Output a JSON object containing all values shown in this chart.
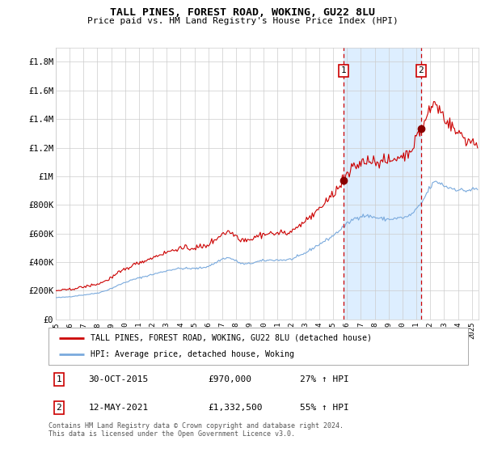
{
  "title": "TALL PINES, FOREST ROAD, WOKING, GU22 8LU",
  "subtitle": "Price paid vs. HM Land Registry's House Price Index (HPI)",
  "sale1_date": "30-OCT-2015",
  "sale1_price": 970000,
  "sale1_pct": "27%",
  "sale2_date": "12-MAY-2021",
  "sale2_price": 1332500,
  "sale2_pct": "55%",
  "legend1": "TALL PINES, FOREST ROAD, WOKING, GU22 8LU (detached house)",
  "legend2": "HPI: Average price, detached house, Woking",
  "footer": "Contains HM Land Registry data © Crown copyright and database right 2024.\nThis data is licensed under the Open Government Licence v3.0.",
  "hpi_color": "#7aaadd",
  "price_color": "#cc0000",
  "dot_color": "#880000",
  "shade_color": "#ddeeff",
  "dashed_color": "#cc0000",
  "grid_color": "#cccccc",
  "bg_color": "#ffffff",
  "ylim": [
    0,
    1900000
  ],
  "yticks": [
    0,
    200000,
    400000,
    600000,
    800000,
    1000000,
    1200000,
    1400000,
    1600000,
    1800000
  ],
  "ytick_labels": [
    "£0",
    "£200K",
    "£400K",
    "£600K",
    "£800K",
    "£1M",
    "£1.2M",
    "£1.4M",
    "£1.6M",
    "£1.8M"
  ],
  "year_start": 1995,
  "year_end": 2025
}
